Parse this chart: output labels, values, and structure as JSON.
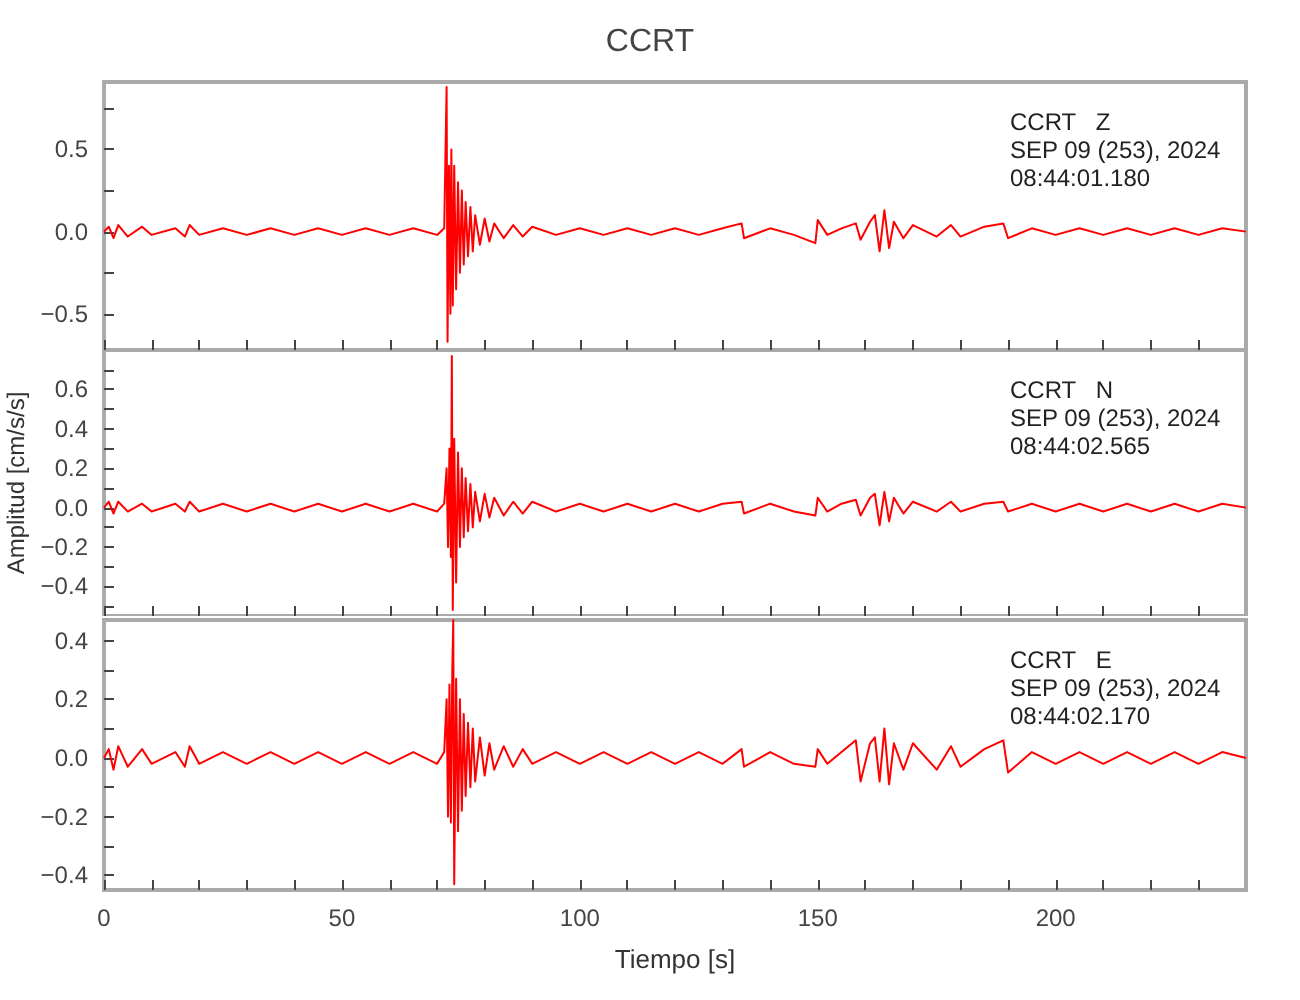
{
  "chart_data": [
    {
      "type": "line",
      "title": "CCRT",
      "color": "#ff0000",
      "tick_labels": "y",
      "annotations": [
        "CCRT   Z",
        "SEP 09 (253), 2024",
        "08:44:01.180"
      ],
      "xlim": [
        0,
        240
      ],
      "xticks": [
        0,
        {
          "value": 10,
          "label": null
        },
        {
          "value": 20,
          "label": null
        },
        {
          "value": 30,
          "label": null
        },
        {
          "value": 40,
          "label": null
        },
        50,
        {
          "value": 60,
          "label": null
        },
        {
          "value": 70,
          "label": null
        },
        {
          "value": 80,
          "label": null
        },
        {
          "value": 90,
          "label": null
        },
        100,
        {
          "value": 110,
          "label": null
        },
        {
          "value": 120,
          "label": null
        },
        {
          "value": 130,
          "label": null
        },
        {
          "value": 140,
          "label": null
        },
        150,
        {
          "value": 160,
          "label": null
        },
        {
          "value": 170,
          "label": null
        },
        {
          "value": 180,
          "label": null
        },
        {
          "value": 190,
          "label": null
        },
        200,
        {
          "value": 210,
          "label": null
        },
        {
          "value": 220,
          "label": null
        },
        {
          "value": 230,
          "label": null
        }
      ],
      "ylim": [
        -0.72,
        0.91
      ],
      "yticks": [
        {
          "value": -0.5,
          "label": "−0.5"
        },
        {
          "value": -0.25,
          "label": null
        },
        {
          "value": 0,
          "label": "0.0"
        },
        {
          "value": 0.25,
          "label": null
        },
        {
          "value": 0.5,
          "label": "0.5"
        },
        {
          "value": 0.75,
          "label": null
        }
      ],
      "x": [
        0,
        1,
        2,
        3,
        5,
        8,
        10,
        15,
        17,
        18,
        20,
        25,
        30,
        35,
        40,
        45,
        50,
        55,
        60,
        65,
        70,
        71.5,
        72,
        72.2,
        72.5,
        72.8,
        73,
        73.3,
        73.6,
        74,
        74.4,
        74.8,
        75.2,
        75.6,
        76,
        76.5,
        77,
        77.5,
        78,
        79,
        80,
        81,
        82,
        84,
        86,
        88,
        90,
        95,
        100,
        105,
        110,
        115,
        120,
        125,
        130,
        134,
        134.5,
        140,
        145,
        149.5,
        150,
        152,
        155,
        158,
        159,
        161,
        162,
        163,
        164,
        165,
        166,
        168,
        170,
        175,
        178,
        180,
        185,
        189,
        190,
        195,
        200,
        205,
        210,
        215,
        220,
        225,
        230,
        235,
        240
      ],
      "values": [
        0,
        0.03,
        -0.04,
        0.04,
        -0.03,
        0.03,
        -0.02,
        0.02,
        -0.03,
        0.04,
        -0.02,
        0.02,
        -0.02,
        0.02,
        -0.02,
        0.02,
        -0.02,
        0.02,
        -0.02,
        0.02,
        -0.02,
        0.02,
        0.88,
        -0.67,
        0.4,
        -0.5,
        0.5,
        -0.45,
        0.4,
        -0.35,
        0.3,
        -0.25,
        0.25,
        -0.2,
        0.18,
        -0.15,
        0.15,
        -0.12,
        0.1,
        -0.08,
        0.08,
        -0.06,
        0.05,
        -0.04,
        0.04,
        -0.03,
        0.03,
        -0.02,
        0.02,
        -0.02,
        0.02,
        -0.02,
        0.02,
        -0.02,
        0.02,
        0.05,
        -0.04,
        0.02,
        -0.02,
        -0.07,
        0.07,
        -0.02,
        0.02,
        0.05,
        -0.05,
        0.06,
        0.1,
        -0.12,
        0.13,
        -0.1,
        0.06,
        -0.04,
        0.04,
        -0.03,
        0.04,
        -0.03,
        0.03,
        0.05,
        -0.04,
        0.02,
        -0.02,
        0.02,
        -0.02,
        0.02,
        -0.02,
        0.02,
        -0.02,
        0.02,
        0
      ]
    },
    {
      "type": "line",
      "ylabel": "Amplitud [cm/s/s]",
      "color": "#ff0000",
      "tick_labels": "y",
      "annotations": [
        "CCRT   N",
        "SEP 09 (253), 2024",
        "08:44:02.565"
      ],
      "xlim": [
        0,
        240
      ],
      "xticks": [
        0,
        {
          "value": 10,
          "label": null
        },
        {
          "value": 20,
          "label": null
        },
        {
          "value": 30,
          "label": null
        },
        {
          "value": 40,
          "label": null
        },
        50,
        {
          "value": 60,
          "label": null
        },
        {
          "value": 70,
          "label": null
        },
        {
          "value": 80,
          "label": null
        },
        {
          "value": 90,
          "label": null
        },
        100,
        {
          "value": 110,
          "label": null
        },
        {
          "value": 120,
          "label": null
        },
        {
          "value": 130,
          "label": null
        },
        {
          "value": 140,
          "label": null
        },
        150,
        {
          "value": 160,
          "label": null
        },
        {
          "value": 170,
          "label": null
        },
        {
          "value": 180,
          "label": null
        },
        {
          "value": 190,
          "label": null
        },
        200,
        {
          "value": 210,
          "label": null
        },
        {
          "value": 220,
          "label": null
        },
        {
          "value": 230,
          "label": null
        }
      ],
      "ylim": [
        -0.55,
        0.8
      ],
      "yticks": [
        {
          "value": -0.5,
          "label": null
        },
        {
          "value": -0.4,
          "label": "−0.4"
        },
        {
          "value": -0.3,
          "label": null
        },
        {
          "value": -0.2,
          "label": "−0.2"
        },
        {
          "value": -0.1,
          "label": null
        },
        {
          "value": 0,
          "label": "0.0"
        },
        {
          "value": 0.1,
          "label": null
        },
        {
          "value": 0.2,
          "label": "0.2"
        },
        {
          "value": 0.3,
          "label": null
        },
        {
          "value": 0.4,
          "label": "0.4"
        },
        {
          "value": 0.5,
          "label": null
        },
        {
          "value": 0.6,
          "label": "0.6"
        },
        {
          "value": 0.7,
          "label": null
        }
      ],
      "x": [
        0,
        1,
        2,
        3,
        5,
        8,
        10,
        15,
        17,
        18,
        20,
        25,
        30,
        35,
        40,
        45,
        50,
        55,
        60,
        65,
        70,
        71.5,
        72,
        72.3,
        72.6,
        72.9,
        73.1,
        73.3,
        73.6,
        74,
        74.4,
        74.8,
        75.2,
        75.6,
        76,
        76.5,
        77,
        77.5,
        78,
        79,
        80,
        81,
        82,
        84,
        86,
        88,
        90,
        95,
        100,
        105,
        110,
        115,
        120,
        125,
        130,
        134,
        134.5,
        140,
        145,
        149.5,
        150,
        152,
        155,
        158,
        159,
        161,
        162,
        163,
        164,
        165,
        166,
        168,
        170,
        175,
        178,
        180,
        185,
        189,
        190,
        195,
        200,
        205,
        210,
        215,
        220,
        225,
        230,
        235,
        240
      ],
      "values": [
        0,
        0.03,
        -0.03,
        0.03,
        -0.02,
        0.02,
        -0.02,
        0.02,
        -0.02,
        0.03,
        -0.02,
        0.02,
        -0.02,
        0.02,
        -0.02,
        0.02,
        -0.02,
        0.02,
        -0.02,
        0.02,
        -0.02,
        0.02,
        0.2,
        -0.2,
        0.3,
        -0.25,
        0.77,
        -0.52,
        0.35,
        -0.38,
        0.28,
        -0.2,
        0.2,
        -0.15,
        0.15,
        -0.12,
        0.12,
        -0.1,
        0.08,
        -0.07,
        0.07,
        -0.05,
        0.05,
        -0.04,
        0.03,
        -0.03,
        0.03,
        -0.02,
        0.02,
        -0.02,
        0.02,
        -0.02,
        0.02,
        -0.02,
        0.02,
        0.03,
        -0.03,
        0.02,
        -0.02,
        -0.04,
        0.05,
        -0.02,
        0.02,
        0.04,
        -0.04,
        0.05,
        0.07,
        -0.09,
        0.08,
        -0.07,
        0.05,
        -0.03,
        0.03,
        -0.02,
        0.03,
        -0.02,
        0.02,
        0.03,
        -0.02,
        0.02,
        -0.02,
        0.02,
        -0.02,
        0.02,
        -0.02,
        0.02,
        -0.02,
        0.02,
        0
      ]
    },
    {
      "type": "line",
      "xlabel": "Tiempo [s]",
      "color": "#ff0000",
      "annotations": [
        "CCRT   E",
        "SEP 09 (253), 2024",
        "08:44:02.170"
      ],
      "xlim": [
        0,
        240
      ],
      "xticks": [
        0,
        {
          "value": 10,
          "label": null
        },
        {
          "value": 20,
          "label": null
        },
        {
          "value": 30,
          "label": null
        },
        {
          "value": 40,
          "label": null
        },
        50,
        {
          "value": 60,
          "label": null
        },
        {
          "value": 70,
          "label": null
        },
        {
          "value": 80,
          "label": null
        },
        {
          "value": 90,
          "label": null
        },
        100,
        {
          "value": 110,
          "label": null
        },
        {
          "value": 120,
          "label": null
        },
        {
          "value": 130,
          "label": null
        },
        {
          "value": 140,
          "label": null
        },
        150,
        {
          "value": 160,
          "label": null
        },
        {
          "value": 170,
          "label": null
        },
        {
          "value": 180,
          "label": null
        },
        {
          "value": 190,
          "label": null
        },
        200,
        {
          "value": 210,
          "label": null
        },
        {
          "value": 220,
          "label": null
        },
        {
          "value": 230,
          "label": null
        }
      ],
      "ylim": [
        -0.45,
        0.47
      ],
      "yticks": [
        {
          "value": -0.4,
          "label": "−0.4"
        },
        {
          "value": -0.3,
          "label": null
        },
        {
          "value": -0.2,
          "label": "−0.2"
        },
        {
          "value": -0.1,
          "label": null
        },
        {
          "value": 0,
          "label": "0.0"
        },
        {
          "value": 0.1,
          "label": null
        },
        {
          "value": 0.2,
          "label": "0.2"
        },
        {
          "value": 0.3,
          "label": null
        },
        {
          "value": 0.4,
          "label": "0.4"
        }
      ],
      "x": [
        0,
        1,
        2,
        3,
        5,
        8,
        10,
        15,
        17,
        18,
        20,
        25,
        30,
        35,
        40,
        45,
        50,
        55,
        60,
        65,
        70,
        71.5,
        72,
        72.3,
        72.6,
        72.9,
        73.2,
        73.4,
        73.6,
        74,
        74.4,
        74.8,
        75.2,
        75.6,
        76,
        76.5,
        77,
        77.5,
        78,
        79,
        80,
        81,
        82,
        84,
        86,
        88,
        90,
        95,
        100,
        105,
        110,
        115,
        120,
        125,
        130,
        134,
        134.5,
        140,
        145,
        149.5,
        150,
        152,
        155,
        158,
        159,
        161,
        162,
        163,
        164,
        165,
        166,
        168,
        170,
        175,
        178,
        180,
        185,
        189,
        190,
        195,
        200,
        205,
        210,
        215,
        220,
        225,
        230,
        235,
        240
      ],
      "values": [
        0,
        0.03,
        -0.04,
        0.04,
        -0.03,
        0.03,
        -0.02,
        0.02,
        -0.03,
        0.04,
        -0.02,
        0.02,
        -0.02,
        0.02,
        -0.02,
        0.02,
        -0.02,
        0.02,
        -0.02,
        0.02,
        -0.02,
        0.02,
        0.2,
        -0.2,
        0.25,
        -0.22,
        0.3,
        0.47,
        -0.43,
        0.27,
        -0.25,
        0.2,
        -0.18,
        0.15,
        -0.13,
        0.12,
        -0.1,
        0.1,
        -0.08,
        0.07,
        -0.06,
        0.05,
        -0.04,
        0.04,
        -0.03,
        0.03,
        -0.02,
        0.02,
        -0.02,
        0.02,
        -0.02,
        0.02,
        -0.02,
        0.02,
        -0.02,
        0.03,
        -0.03,
        0.02,
        -0.02,
        -0.03,
        0.03,
        -0.02,
        0.02,
        0.06,
        -0.08,
        0.05,
        0.07,
        -0.08,
        0.1,
        -0.09,
        0.05,
        -0.04,
        0.05,
        -0.04,
        0.04,
        -0.03,
        0.03,
        0.06,
        -0.05,
        0.02,
        -0.02,
        0.02,
        -0.02,
        0.02,
        -0.02,
        0.02,
        -0.02,
        0.02,
        0
      ]
    }
  ]
}
